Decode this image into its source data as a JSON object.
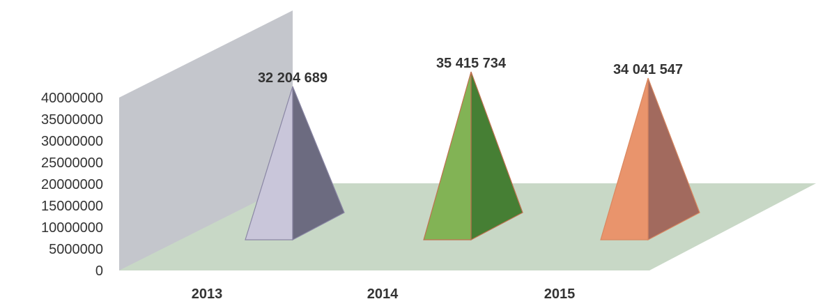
{
  "chart_data": {
    "type": "bar",
    "style": "3d-pyramid",
    "title": "",
    "xlabel": "",
    "ylabel": "",
    "categories": [
      "2013",
      "2014",
      "2015"
    ],
    "values": [
      32204689,
      35415734,
      34041547
    ],
    "data_labels": [
      "32 204 689",
      "35 415 734",
      "34 041 547"
    ],
    "ylim": [
      0,
      40000000
    ],
    "yticks": [
      0,
      5000000,
      10000000,
      15000000,
      20000000,
      25000000,
      30000000,
      35000000,
      40000000
    ],
    "ytick_labels": [
      "0",
      "5000000",
      "10000000",
      "15000000",
      "20000000",
      "25000000",
      "30000000",
      "35000000",
      "40000000"
    ],
    "grid": false,
    "legend": "none",
    "colors": {
      "back_wall": "#c4c6cc",
      "floor": "#c8d8c6",
      "bars": [
        {
          "light": "#c9c6da",
          "dark": "#6c6b80",
          "edge": "#8a86a4"
        },
        {
          "light": "#82b355",
          "dark": "#467f34",
          "edge": "#c0704f"
        },
        {
          "light": "#e9946c",
          "dark": "#a26a5e",
          "edge": "#d98760"
        }
      ],
      "text": "#333333"
    }
  }
}
